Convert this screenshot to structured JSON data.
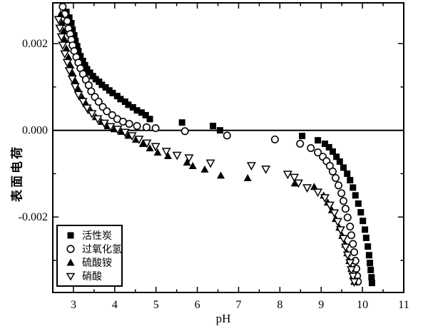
{
  "colors": {
    "marker": "#000000",
    "background": "#ffffff",
    "axis": "#000000"
  },
  "chart_data": {
    "type": "scatter",
    "title": "",
    "xlabel": "pH",
    "ylabel": "表面电荷",
    "xlim": [
      2.5,
      11.0
    ],
    "ylim": [
      -0.00374,
      0.00294
    ],
    "grid": false,
    "box_axes": true,
    "zero_line": true,
    "legend_position": "lower-left",
    "x_major_ticks": [
      3,
      4,
      5,
      6,
      7,
      8,
      9,
      10,
      11
    ],
    "x_tick_labels": [
      "3",
      "4",
      "5",
      "6",
      "7",
      "8",
      "9",
      "10",
      "11"
    ],
    "x_minor_ticks": [
      3.5,
      4.5,
      5.5,
      6.5,
      7.5,
      8.5,
      9.5,
      10.5
    ],
    "y_major_ticks": [
      0.002,
      0.0,
      -0.002
    ],
    "y_tick_labels": [
      "0.002",
      "0.000",
      "-0.002"
    ],
    "y_minor_ticks": [
      0.001,
      -0.001,
      -0.003
    ],
    "series": [
      {
        "name": "活性炭",
        "marker": "filled-square",
        "points": [
          [
            2.83,
            0.00273
          ],
          [
            2.9,
            0.0026
          ],
          [
            2.95,
            0.00247
          ],
          [
            2.98,
            0.00232
          ],
          [
            3.02,
            0.00219
          ],
          [
            3.05,
            0.00206
          ],
          [
            3.09,
            0.00194
          ],
          [
            3.12,
            0.00183
          ],
          [
            3.17,
            0.00171
          ],
          [
            3.23,
            0.0016
          ],
          [
            3.28,
            0.0015
          ],
          [
            3.33,
            0.00141
          ],
          [
            3.4,
            0.00133
          ],
          [
            3.47,
            0.00125
          ],
          [
            3.54,
            0.00118
          ],
          [
            3.62,
            0.00112
          ],
          [
            3.69,
            0.00105
          ],
          [
            3.78,
            0.00099
          ],
          [
            3.87,
            0.00092
          ],
          [
            3.95,
            0.00086
          ],
          [
            4.06,
            0.00079
          ],
          [
            4.14,
            0.00072
          ],
          [
            4.25,
            0.00066
          ],
          [
            4.33,
            0.00059
          ],
          [
            4.44,
            0.00053
          ],
          [
            4.54,
            0.00046
          ],
          [
            4.65,
            0.00041
          ],
          [
            4.75,
            0.00035
          ],
          [
            4.85,
            0.00026
          ],
          [
            5.63,
            0.00018
          ],
          [
            6.38,
            0.0001
          ],
          [
            6.55,
            0.0
          ],
          [
            8.54,
            -0.00013
          ],
          [
            8.92,
            -0.00023
          ],
          [
            9.09,
            -0.00031
          ],
          [
            9.19,
            -0.00039
          ],
          [
            9.28,
            -0.00049
          ],
          [
            9.37,
            -0.00061
          ],
          [
            9.45,
            -0.00072
          ],
          [
            9.54,
            -0.00086
          ],
          [
            9.63,
            -0.001
          ],
          [
            9.7,
            -0.00115
          ],
          [
            9.77,
            -0.00132
          ],
          [
            9.83,
            -0.0015
          ],
          [
            9.9,
            -0.00169
          ],
          [
            9.96,
            -0.00189
          ],
          [
            10.01,
            -0.00209
          ],
          [
            10.06,
            -0.00229
          ],
          [
            10.09,
            -0.00248
          ],
          [
            10.13,
            -0.00268
          ],
          [
            10.16,
            -0.00288
          ],
          [
            10.18,
            -0.00306
          ],
          [
            10.2,
            -0.00322
          ],
          [
            10.22,
            -0.00339
          ],
          [
            10.23,
            -0.00352
          ]
        ]
      },
      {
        "name": "过氧化氢",
        "marker": "open-circle",
        "points": [
          [
            2.74,
            0.00285
          ],
          [
            2.79,
            0.00268
          ],
          [
            2.85,
            0.00252
          ],
          [
            2.88,
            0.00235
          ],
          [
            2.92,
            0.00222
          ],
          [
            2.95,
            0.00209
          ],
          [
            2.98,
            0.00196
          ],
          [
            3.02,
            0.00183
          ],
          [
            3.07,
            0.00169
          ],
          [
            3.12,
            0.00156
          ],
          [
            3.17,
            0.00143
          ],
          [
            3.23,
            0.0013
          ],
          [
            3.3,
            0.00117
          ],
          [
            3.37,
            0.00104
          ],
          [
            3.43,
            0.0009
          ],
          [
            3.52,
            0.00077
          ],
          [
            3.61,
            0.00066
          ],
          [
            3.71,
            0.00054
          ],
          [
            3.81,
            0.00044
          ],
          [
            3.94,
            0.00035
          ],
          [
            4.06,
            0.00026
          ],
          [
            4.2,
            0.0002
          ],
          [
            4.35,
            0.00015
          ],
          [
            4.54,
            0.0001
          ],
          [
            4.77,
            7e-05
          ],
          [
            4.99,
            5e-05
          ],
          [
            5.7,
            -2e-05
          ],
          [
            6.72,
            -0.00012
          ],
          [
            7.88,
            -0.00021
          ],
          [
            8.49,
            -0.00031
          ],
          [
            8.75,
            -0.00041
          ],
          [
            8.92,
            -0.00051
          ],
          [
            9.04,
            -0.00061
          ],
          [
            9.13,
            -0.00071
          ],
          [
            9.21,
            -0.00082
          ],
          [
            9.28,
            -0.00095
          ],
          [
            9.35,
            -0.0011
          ],
          [
            9.42,
            -0.00127
          ],
          [
            9.49,
            -0.00145
          ],
          [
            9.54,
            -0.00163
          ],
          [
            9.59,
            -0.00181
          ],
          [
            9.64,
            -0.00201
          ],
          [
            9.7,
            -0.00222
          ],
          [
            9.73,
            -0.00242
          ],
          [
            9.77,
            -0.00262
          ],
          [
            9.8,
            -0.00281
          ],
          [
            9.83,
            -0.00301
          ],
          [
            9.85,
            -0.00319
          ],
          [
            9.87,
            -0.00336
          ],
          [
            9.89,
            -0.00349
          ]
        ]
      },
      {
        "name": "硫酸铵",
        "marker": "filled-triangle-up",
        "points": [
          [
            2.69,
            0.00268
          ],
          [
            2.72,
            0.00248
          ],
          [
            2.76,
            0.00229
          ],
          [
            2.79,
            0.00209
          ],
          [
            2.83,
            0.00189
          ],
          [
            2.88,
            0.00169
          ],
          [
            2.93,
            0.0015
          ],
          [
            2.98,
            0.00132
          ],
          [
            3.05,
            0.00113
          ],
          [
            3.12,
            0.00095
          ],
          [
            3.21,
            0.00077
          ],
          [
            3.31,
            0.00061
          ],
          [
            3.42,
            0.00046
          ],
          [
            3.54,
            0.00031
          ],
          [
            3.68,
            0.0002
          ],
          [
            3.83,
            0.0001
          ],
          [
            3.99,
            3e-05
          ],
          [
            4.16,
            -3e-05
          ],
          [
            4.33,
            -0.00012
          ],
          [
            4.51,
            -0.00021
          ],
          [
            4.68,
            -0.00031
          ],
          [
            4.85,
            -0.00041
          ],
          [
            5.04,
            -0.00051
          ],
          [
            5.29,
            -0.00059
          ],
          [
            5.75,
            -0.00074
          ],
          [
            5.89,
            -0.00082
          ],
          [
            6.18,
            -0.0009
          ],
          [
            6.57,
            -0.00104
          ],
          [
            7.22,
            -0.0011
          ],
          [
            8.36,
            -0.00122
          ],
          [
            8.83,
            -0.0013
          ],
          [
            9.06,
            -0.0015
          ],
          [
            9.16,
            -0.00166
          ],
          [
            9.26,
            -0.00184
          ],
          [
            9.35,
            -0.00204
          ],
          [
            9.44,
            -0.00224
          ],
          [
            9.51,
            -0.00243
          ],
          [
            9.58,
            -0.00263
          ],
          [
            9.63,
            -0.00283
          ],
          [
            9.68,
            -0.00301
          ],
          [
            9.73,
            -0.00319
          ],
          [
            9.77,
            -0.00336
          ],
          [
            9.8,
            -0.00349
          ]
        ]
      },
      {
        "name": "硝酸",
        "marker": "open-triangle-down",
        "points": [
          [
            2.64,
            0.00255
          ],
          [
            2.67,
            0.00235
          ],
          [
            2.71,
            0.00215
          ],
          [
            2.74,
            0.00196
          ],
          [
            2.79,
            0.00176
          ],
          [
            2.85,
            0.00156
          ],
          [
            2.9,
            0.00137
          ],
          [
            2.97,
            0.00118
          ],
          [
            3.04,
            0.001
          ],
          [
            3.12,
            0.00082
          ],
          [
            3.23,
            0.00066
          ],
          [
            3.33,
            0.00051
          ],
          [
            3.45,
            0.00038
          ],
          [
            3.59,
            0.00026
          ],
          [
            3.75,
            0.00016
          ],
          [
            3.9,
            8e-05
          ],
          [
            4.07,
            2e-05
          ],
          [
            4.25,
            -5e-05
          ],
          [
            4.42,
            -0.00013
          ],
          [
            4.59,
            -0.00021
          ],
          [
            4.78,
            -0.0003
          ],
          [
            4.99,
            -0.00038
          ],
          [
            5.25,
            -0.00049
          ],
          [
            5.51,
            -0.00058
          ],
          [
            5.8,
            -0.00064
          ],
          [
            6.32,
            -0.00076
          ],
          [
            7.31,
            -0.00082
          ],
          [
            7.66,
            -0.0009
          ],
          [
            8.19,
            -0.00102
          ],
          [
            8.35,
            -0.00109
          ],
          [
            8.45,
            -0.00122
          ],
          [
            8.66,
            -0.00133
          ],
          [
            8.92,
            -0.00143
          ],
          [
            9.09,
            -0.00156
          ],
          [
            9.21,
            -0.00173
          ],
          [
            9.32,
            -0.00191
          ],
          [
            9.4,
            -0.00211
          ],
          [
            9.47,
            -0.0023
          ],
          [
            9.54,
            -0.0025
          ],
          [
            9.59,
            -0.0027
          ],
          [
            9.64,
            -0.00288
          ],
          [
            9.7,
            -0.00306
          ],
          [
            9.73,
            -0.00322
          ],
          [
            9.77,
            -0.00337
          ],
          [
            9.8,
            -0.0035
          ]
        ]
      }
    ]
  }
}
